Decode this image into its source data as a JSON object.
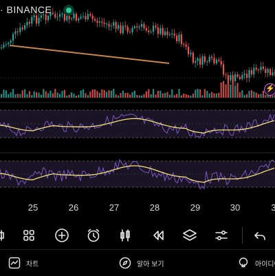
{
  "symbol": {
    "exchange_label": "· BINANCE"
  },
  "timeline": {
    "dates": [
      "25",
      "26",
      "27",
      "28",
      "29",
      "30",
      "3"
    ]
  },
  "toolbar": {
    "items": [
      {
        "icon": "candle-style-icon"
      },
      {
        "icon": "grid-apps-icon"
      },
      {
        "icon": "plus-circle-icon"
      },
      {
        "icon": "alarm-clock-icon"
      },
      {
        "icon": "candlesticks-icon"
      },
      {
        "icon": "rewind-icon"
      },
      {
        "icon": "layers-icon"
      },
      {
        "icon": "sliders-icon"
      },
      {
        "icon": "undo-icon"
      }
    ]
  },
  "bottom_nav": {
    "chart_label": "차트",
    "explore_label": "알아 보기",
    "ideas_label": "아이디어"
  },
  "colors": {
    "up_candle": "#26a69a",
    "down_candle": "#ef5350",
    "trendline": "#c8864a",
    "oscillator_line": "#7e57c2",
    "signal_line": "#f5e27a",
    "panel_band": "#1a1426",
    "background": "#000000"
  }
}
